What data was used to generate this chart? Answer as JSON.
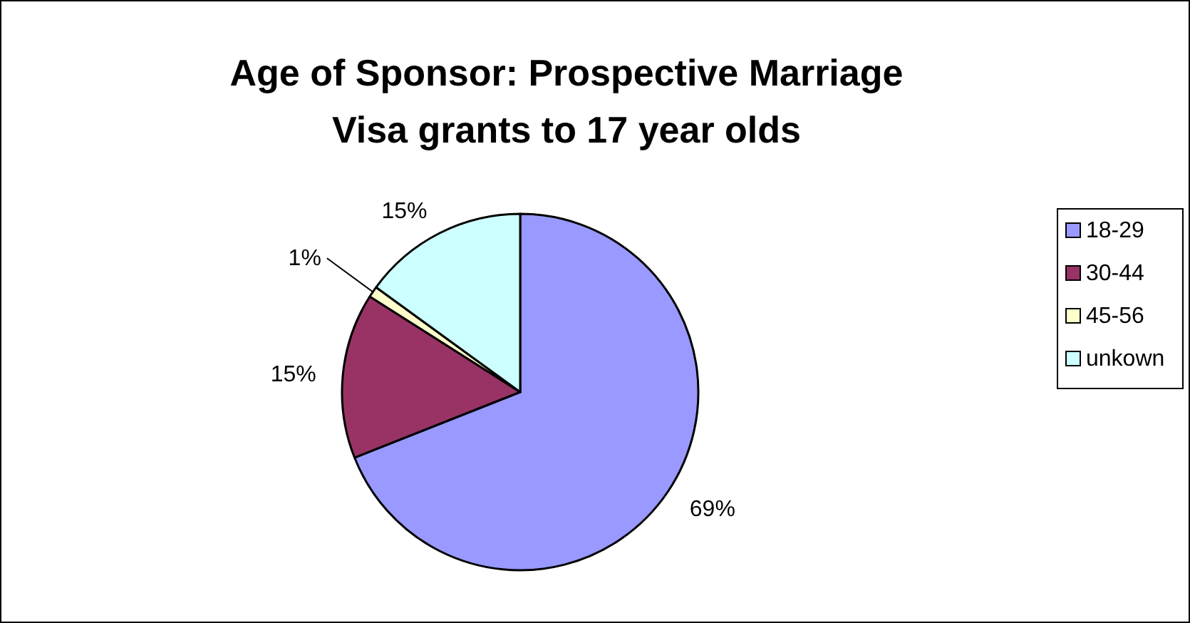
{
  "chart_data": {
    "type": "pie",
    "title": "Age of Sponsor: Prospective Marriage Visa grants to 17 year olds",
    "categories": [
      "18-29",
      "30-44",
      "45-56",
      "unkown"
    ],
    "values": [
      69,
      15,
      1,
      15
    ],
    "colors": [
      "#9999ff",
      "#993366",
      "#ffffcc",
      "#ccffff"
    ],
    "value_labels": [
      "69%",
      "15%",
      "1%",
      "15%"
    ],
    "legend": "right"
  }
}
